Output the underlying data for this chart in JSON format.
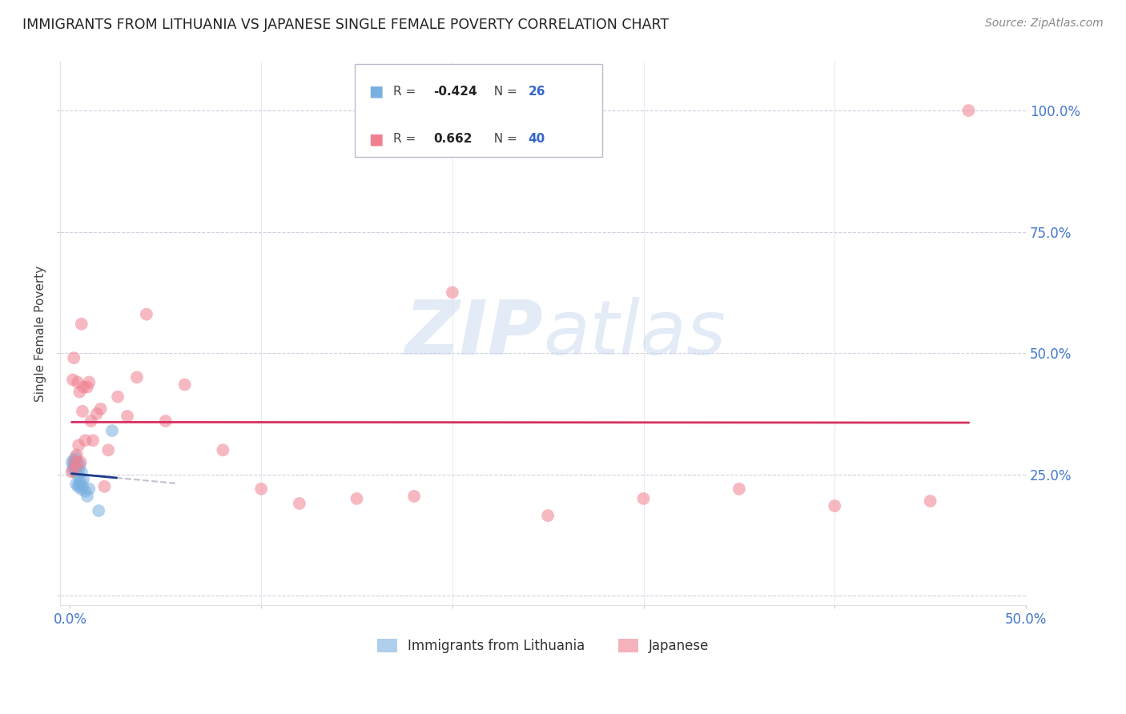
{
  "title": "IMMIGRANTS FROM LITHUANIA VS JAPANESE SINGLE FEMALE POVERTY CORRELATION CHART",
  "source": "Source: ZipAtlas.com",
  "ylabel": "Single Female Poverty",
  "legend_blue_R": "-0.424",
  "legend_blue_N": "26",
  "legend_pink_R": "0.662",
  "legend_pink_N": "40",
  "blue_color": "#7ab0e0",
  "pink_color": "#f08090",
  "blue_line_color": "#1a3a8a",
  "pink_line_color": "#d63060",
  "dashed_line_color": "#c0c0d0",
  "background": "#ffffff",
  "blue_points_x": [
    0.001,
    0.0015,
    0.0018,
    0.002,
    0.0022,
    0.0025,
    0.0028,
    0.003,
    0.0032,
    0.0035,
    0.0038,
    0.004,
    0.0042,
    0.0045,
    0.0048,
    0.005,
    0.0055,
    0.0058,
    0.006,
    0.0065,
    0.007,
    0.008,
    0.009,
    0.01,
    0.015,
    0.022
  ],
  "blue_points_y": [
    0.275,
    0.26,
    0.27,
    0.28,
    0.265,
    0.255,
    0.27,
    0.285,
    0.23,
    0.265,
    0.275,
    0.25,
    0.225,
    0.26,
    0.23,
    0.27,
    0.235,
    0.22,
    0.255,
    0.225,
    0.24,
    0.215,
    0.205,
    0.22,
    0.175,
    0.34
  ],
  "pink_points_x": [
    0.001,
    0.0015,
    0.002,
    0.0025,
    0.003,
    0.0035,
    0.004,
    0.0045,
    0.005,
    0.0055,
    0.006,
    0.0065,
    0.007,
    0.008,
    0.009,
    0.01,
    0.011,
    0.012,
    0.014,
    0.016,
    0.018,
    0.02,
    0.025,
    0.03,
    0.035,
    0.04,
    0.05,
    0.06,
    0.08,
    0.1,
    0.12,
    0.15,
    0.18,
    0.2,
    0.25,
    0.3,
    0.35,
    0.4,
    0.45,
    0.47
  ],
  "pink_points_y": [
    0.255,
    0.445,
    0.49,
    0.275,
    0.265,
    0.29,
    0.44,
    0.31,
    0.42,
    0.275,
    0.56,
    0.38,
    0.43,
    0.32,
    0.43,
    0.44,
    0.36,
    0.32,
    0.375,
    0.385,
    0.225,
    0.3,
    0.41,
    0.37,
    0.45,
    0.58,
    0.36,
    0.435,
    0.3,
    0.22,
    0.19,
    0.2,
    0.205,
    0.625,
    0.165,
    0.2,
    0.22,
    0.185,
    0.195,
    1.0
  ],
  "xlim_max": 0.5,
  "ylim_max": 1.1
}
